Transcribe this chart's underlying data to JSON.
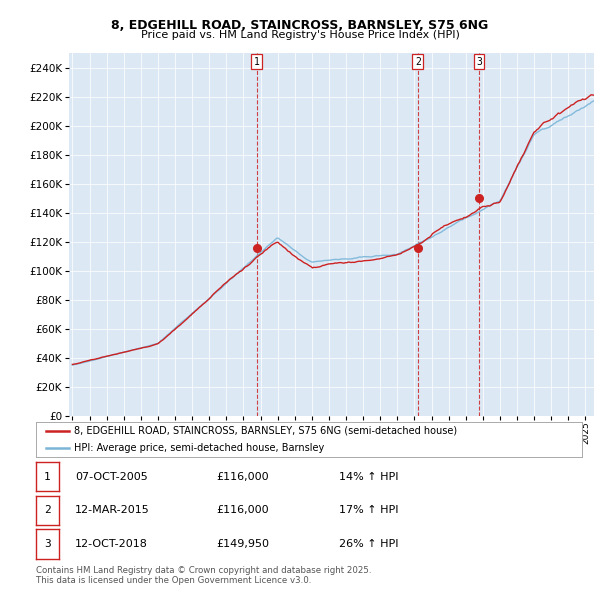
{
  "title_line1": "8, EDGEHILL ROAD, STAINCROSS, BARNSLEY, S75 6NG",
  "title_line2": "Price paid vs. HM Land Registry's House Price Index (HPI)",
  "plot_bg_color": "#dce9f5",
  "fig_bg_color": "#ffffff",
  "ylim": [
    0,
    250000
  ],
  "yticks": [
    0,
    20000,
    40000,
    60000,
    80000,
    100000,
    120000,
    140000,
    160000,
    180000,
    200000,
    220000,
    240000
  ],
  "xmin_year": 1995,
  "xmax_year": 2025.5,
  "xticks": [
    1995,
    1996,
    1997,
    1998,
    1999,
    2000,
    2001,
    2002,
    2003,
    2004,
    2005,
    2006,
    2007,
    2008,
    2009,
    2010,
    2011,
    2012,
    2013,
    2014,
    2015,
    2016,
    2017,
    2018,
    2019,
    2020,
    2021,
    2022,
    2023,
    2024,
    2025
  ],
  "hpi_color": "#7ab5d8",
  "price_color": "#cc2222",
  "vline_color": "#cc2222",
  "sales": [
    {
      "label": "1",
      "date_num": 2005.77,
      "price": 116000,
      "date_str": "07-OCT-2005"
    },
    {
      "label": "2",
      "date_num": 2015.2,
      "price": 116000,
      "date_str": "12-MAR-2015"
    },
    {
      "label": "3",
      "date_num": 2018.78,
      "price": 149950,
      "date_str": "12-OCT-2018"
    }
  ],
  "legend_label_price": "8, EDGEHILL ROAD, STAINCROSS, BARNSLEY, S75 6NG (semi-detached house)",
  "legend_label_hpi": "HPI: Average price, semi-detached house, Barnsley",
  "footnote_line1": "Contains HM Land Registry data © Crown copyright and database right 2025.",
  "footnote_line2": "This data is licensed under the Open Government Licence v3.0.",
  "table_rows": [
    {
      "num": "1",
      "date": "07-OCT-2005",
      "price": "£116,000",
      "pct": "14% ↑ HPI"
    },
    {
      "num": "2",
      "date": "12-MAR-2015",
      "price": "£116,000",
      "pct": "17% ↑ HPI"
    },
    {
      "num": "3",
      "date": "12-OCT-2018",
      "price": "£149,950",
      "pct": "26% ↑ HPI"
    }
  ]
}
